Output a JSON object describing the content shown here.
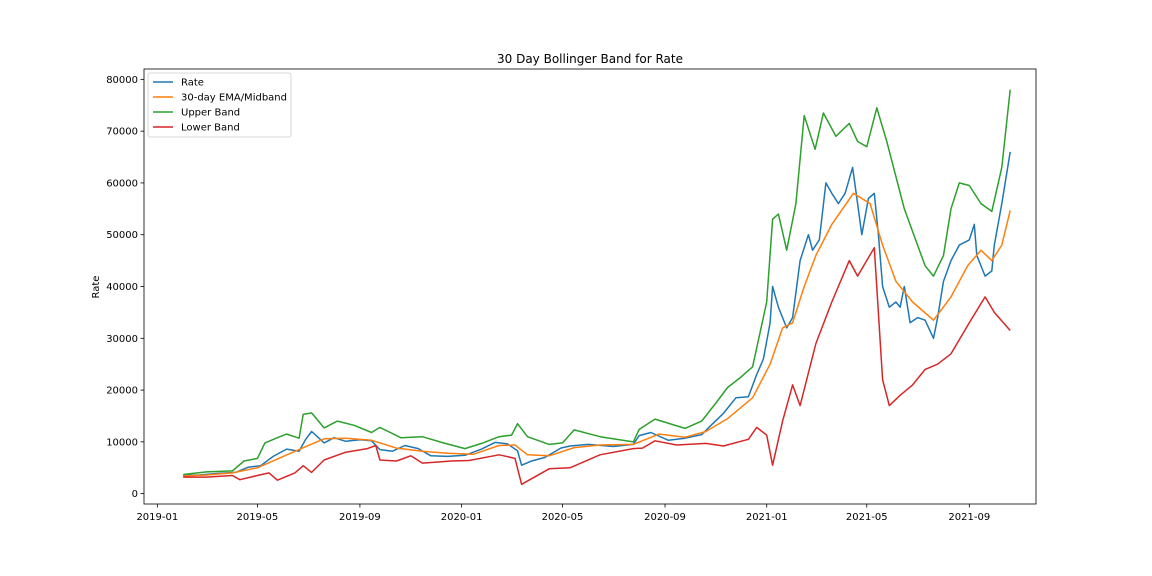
{
  "chart_data": {
    "type": "line",
    "title": "30 Day Bollinger Band for Rate",
    "xlabel": "",
    "ylabel": "Rate",
    "x_ticks": [
      "2019-01",
      "2019-05",
      "2019-09",
      "2020-01",
      "2020-05",
      "2020-09",
      "2021-01",
      "2021-05",
      "2021-09"
    ],
    "y_ticks": [
      "0",
      "10000",
      "20000",
      "30000",
      "40000",
      "50000",
      "60000",
      "70000",
      "80000"
    ],
    "xlim": [
      "2018-12-16",
      "2021-11-20"
    ],
    "ylim": [
      -2000,
      82000
    ],
    "grid": false,
    "legend_position": "top-left",
    "series": [
      {
        "name": "Rate",
        "color": "#1f77b4",
        "points": [
          [
            "2019-02-01",
            3500
          ],
          [
            "2019-02-20",
            3600
          ],
          [
            "2019-03-15",
            3900
          ],
          [
            "2019-04-05",
            4100
          ],
          [
            "2019-04-20",
            5100
          ],
          [
            "2019-05-05",
            5400
          ],
          [
            "2019-05-20",
            7200
          ],
          [
            "2019-06-05",
            8600
          ],
          [
            "2019-06-20",
            8200
          ],
          [
            "2019-06-28",
            10500
          ],
          [
            "2019-07-05",
            12000
          ],
          [
            "2019-07-12",
            11000
          ],
          [
            "2019-07-20",
            9800
          ],
          [
            "2019-08-01",
            10800
          ],
          [
            "2019-08-15",
            10100
          ],
          [
            "2019-09-01",
            10400
          ],
          [
            "2019-09-15",
            10200
          ],
          [
            "2019-09-25",
            8500
          ],
          [
            "2019-10-10",
            8200
          ],
          [
            "2019-10-25",
            9300
          ],
          [
            "2019-11-10",
            8700
          ],
          [
            "2019-11-25",
            7300
          ],
          [
            "2019-12-15",
            7200
          ],
          [
            "2020-01-05",
            7400
          ],
          [
            "2020-01-25",
            8600
          ],
          [
            "2020-02-10",
            9900
          ],
          [
            "2020-02-25",
            9600
          ],
          [
            "2020-03-08",
            8300
          ],
          [
            "2020-03-13",
            5500
          ],
          [
            "2020-03-25",
            6300
          ],
          [
            "2020-04-10",
            7000
          ],
          [
            "2020-04-29",
            8800
          ],
          [
            "2020-05-10",
            9200
          ],
          [
            "2020-06-01",
            9500
          ],
          [
            "2020-07-01",
            9100
          ],
          [
            "2020-07-25",
            9500
          ],
          [
            "2020-08-01",
            11200
          ],
          [
            "2020-08-15",
            11800
          ],
          [
            "2020-09-05",
            10300
          ],
          [
            "2020-09-25",
            10700
          ],
          [
            "2020-10-15",
            11400
          ],
          [
            "2020-10-25",
            13000
          ],
          [
            "2020-11-10",
            15500
          ],
          [
            "2020-11-25",
            18500
          ],
          [
            "2020-12-10",
            18700
          ],
          [
            "2020-12-20",
            23000
          ],
          [
            "2020-12-28",
            26000
          ],
          [
            "2021-01-05",
            33000
          ],
          [
            "2021-01-08",
            40000
          ],
          [
            "2021-01-15",
            36000
          ],
          [
            "2021-01-25",
            32000
          ],
          [
            "2021-02-01",
            34000
          ],
          [
            "2021-02-10",
            45000
          ],
          [
            "2021-02-20",
            50000
          ],
          [
            "2021-02-25",
            47000
          ],
          [
            "2021-03-05",
            49000
          ],
          [
            "2021-03-13",
            60000
          ],
          [
            "2021-03-20",
            58000
          ],
          [
            "2021-03-28",
            56000
          ],
          [
            "2021-04-05",
            58000
          ],
          [
            "2021-04-14",
            63000
          ],
          [
            "2021-04-20",
            56000
          ],
          [
            "2021-04-25",
            50000
          ],
          [
            "2021-05-03",
            57000
          ],
          [
            "2021-05-10",
            58000
          ],
          [
            "2021-05-15",
            50000
          ],
          [
            "2021-05-20",
            40000
          ],
          [
            "2021-05-28",
            36000
          ],
          [
            "2021-06-05",
            37000
          ],
          [
            "2021-06-10",
            36000
          ],
          [
            "2021-06-15",
            40000
          ],
          [
            "2021-06-22",
            33000
          ],
          [
            "2021-07-01",
            34000
          ],
          [
            "2021-07-10",
            33500
          ],
          [
            "2021-07-20",
            30000
          ],
          [
            "2021-07-25",
            34000
          ],
          [
            "2021-08-01",
            41000
          ],
          [
            "2021-08-10",
            45000
          ],
          [
            "2021-08-20",
            48000
          ],
          [
            "2021-09-01",
            49000
          ],
          [
            "2021-09-07",
            52000
          ],
          [
            "2021-09-10",
            46000
          ],
          [
            "2021-09-20",
            42000
          ],
          [
            "2021-09-28",
            43000
          ],
          [
            "2021-10-01",
            48000
          ],
          [
            "2021-10-10",
            56000
          ],
          [
            "2021-10-15",
            61000
          ],
          [
            "2021-10-20",
            66000
          ]
        ]
      },
      {
        "name": "30-day EMA/Midband",
        "color": "#ff7f0e",
        "points": [
          [
            "2019-02-01",
            3400
          ],
          [
            "2019-03-01",
            3600
          ],
          [
            "2019-04-01",
            4000
          ],
          [
            "2019-05-01",
            5000
          ],
          [
            "2019-06-01",
            7200
          ],
          [
            "2019-07-01",
            9300
          ],
          [
            "2019-07-20",
            10600
          ],
          [
            "2019-08-15",
            10700
          ],
          [
            "2019-09-15",
            10300
          ],
          [
            "2019-10-15",
            8800
          ],
          [
            "2019-11-15",
            8200
          ],
          [
            "2019-12-15",
            7800
          ],
          [
            "2020-01-15",
            7600
          ],
          [
            "2020-02-15",
            9300
          ],
          [
            "2020-03-05",
            9400
          ],
          [
            "2020-03-20",
            7500
          ],
          [
            "2020-04-15",
            7300
          ],
          [
            "2020-05-15",
            8900
          ],
          [
            "2020-06-15",
            9400
          ],
          [
            "2020-07-25",
            9500
          ],
          [
            "2020-08-25",
            11500
          ],
          [
            "2020-09-25",
            10900
          ],
          [
            "2020-10-20",
            12000
          ],
          [
            "2020-11-15",
            14500
          ],
          [
            "2020-12-15",
            18500
          ],
          [
            "2021-01-05",
            25000
          ],
          [
            "2021-01-20",
            32000
          ],
          [
            "2021-02-01",
            33000
          ],
          [
            "2021-02-15",
            40000
          ],
          [
            "2021-03-01",
            46000
          ],
          [
            "2021-03-20",
            52000
          ],
          [
            "2021-04-15",
            58000
          ],
          [
            "2021-05-05",
            56000
          ],
          [
            "2021-05-20",
            48000
          ],
          [
            "2021-06-05",
            41000
          ],
          [
            "2021-06-25",
            37000
          ],
          [
            "2021-07-20",
            33500
          ],
          [
            "2021-08-10",
            38000
          ],
          [
            "2021-08-30",
            44000
          ],
          [
            "2021-09-15",
            47000
          ],
          [
            "2021-09-28",
            45000
          ],
          [
            "2021-10-10",
            48000
          ],
          [
            "2021-10-20",
            54700
          ]
        ]
      },
      {
        "name": "Upper Band",
        "color": "#2ca02c",
        "points": [
          [
            "2019-02-01",
            3700
          ],
          [
            "2019-03-01",
            4200
          ],
          [
            "2019-04-01",
            4400
          ],
          [
            "2019-04-15",
            6300
          ],
          [
            "2019-05-01",
            6800
          ],
          [
            "2019-05-10",
            9800
          ],
          [
            "2019-05-25",
            10800
          ],
          [
            "2019-06-05",
            11500
          ],
          [
            "2019-06-20",
            10700
          ],
          [
            "2019-06-25",
            15300
          ],
          [
            "2019-07-05",
            15600
          ],
          [
            "2019-07-20",
            12700
          ],
          [
            "2019-08-05",
            14000
          ],
          [
            "2019-08-25",
            13200
          ],
          [
            "2019-09-15",
            11800
          ],
          [
            "2019-09-25",
            12800
          ],
          [
            "2019-10-20",
            10800
          ],
          [
            "2019-11-15",
            11000
          ],
          [
            "2019-12-10",
            9800
          ],
          [
            "2020-01-05",
            8700
          ],
          [
            "2020-01-25",
            9700
          ],
          [
            "2020-02-15",
            11000
          ],
          [
            "2020-03-01",
            11300
          ],
          [
            "2020-03-08",
            13500
          ],
          [
            "2020-03-20",
            11000
          ],
          [
            "2020-04-15",
            9500
          ],
          [
            "2020-05-01",
            9800
          ],
          [
            "2020-05-15",
            12300
          ],
          [
            "2020-06-15",
            11000
          ],
          [
            "2020-07-25",
            10000
          ],
          [
            "2020-08-01",
            12400
          ],
          [
            "2020-08-20",
            14400
          ],
          [
            "2020-09-25",
            12600
          ],
          [
            "2020-10-15",
            14000
          ],
          [
            "2020-11-01",
            17500
          ],
          [
            "2020-11-15",
            20500
          ],
          [
            "2020-12-01",
            22500
          ],
          [
            "2020-12-15",
            24500
          ],
          [
            "2021-01-01",
            37000
          ],
          [
            "2021-01-08",
            53000
          ],
          [
            "2021-01-15",
            54000
          ],
          [
            "2021-01-25",
            47000
          ],
          [
            "2021-02-05",
            56000
          ],
          [
            "2021-02-15",
            73000
          ],
          [
            "2021-02-28",
            66500
          ],
          [
            "2021-03-10",
            73500
          ],
          [
            "2021-03-25",
            69000
          ],
          [
            "2021-04-10",
            71500
          ],
          [
            "2021-04-20",
            68000
          ],
          [
            "2021-05-01",
            67000
          ],
          [
            "2021-05-13",
            74500
          ],
          [
            "2021-05-25",
            68000
          ],
          [
            "2021-06-15",
            55000
          ],
          [
            "2021-07-10",
            44000
          ],
          [
            "2021-07-20",
            42000
          ],
          [
            "2021-08-01",
            46000
          ],
          [
            "2021-08-10",
            55000
          ],
          [
            "2021-08-20",
            60000
          ],
          [
            "2021-09-01",
            59500
          ],
          [
            "2021-09-15",
            56000
          ],
          [
            "2021-09-28",
            54500
          ],
          [
            "2021-10-10",
            63000
          ],
          [
            "2021-10-20",
            78000
          ]
        ]
      },
      {
        "name": "Lower Band",
        "color": "#d62728",
        "points": [
          [
            "2019-02-01",
            3200
          ],
          [
            "2019-03-01",
            3200
          ],
          [
            "2019-04-01",
            3500
          ],
          [
            "2019-04-10",
            2700
          ],
          [
            "2019-05-01",
            3500
          ],
          [
            "2019-05-15",
            4000
          ],
          [
            "2019-05-25",
            2600
          ],
          [
            "2019-06-15",
            4000
          ],
          [
            "2019-06-25",
            5400
          ],
          [
            "2019-07-05",
            4100
          ],
          [
            "2019-07-20",
            6500
          ],
          [
            "2019-08-15",
            8000
          ],
          [
            "2019-09-10",
            8700
          ],
          [
            "2019-09-20",
            9300
          ],
          [
            "2019-09-25",
            6500
          ],
          [
            "2019-10-15",
            6300
          ],
          [
            "2019-11-01",
            7300
          ],
          [
            "2019-11-15",
            5900
          ],
          [
            "2019-12-20",
            6300
          ],
          [
            "2020-01-10",
            6400
          ],
          [
            "2020-02-15",
            7500
          ],
          [
            "2020-03-05",
            6800
          ],
          [
            "2020-03-13",
            1800
          ],
          [
            "2020-04-15",
            4800
          ],
          [
            "2020-05-10",
            5000
          ],
          [
            "2020-06-15",
            7500
          ],
          [
            "2020-07-25",
            8700
          ],
          [
            "2020-08-05",
            8800
          ],
          [
            "2020-08-20",
            10200
          ],
          [
            "2020-09-15",
            9400
          ],
          [
            "2020-10-20",
            9700
          ],
          [
            "2020-11-10",
            9200
          ],
          [
            "2020-12-10",
            10500
          ],
          [
            "2020-12-20",
            12800
          ],
          [
            "2021-01-01",
            11300
          ],
          [
            "2021-01-08",
            5500
          ],
          [
            "2021-01-20",
            14000
          ],
          [
            "2021-02-01",
            21000
          ],
          [
            "2021-02-10",
            17000
          ],
          [
            "2021-03-01",
            29000
          ],
          [
            "2021-03-20",
            37000
          ],
          [
            "2021-04-10",
            45000
          ],
          [
            "2021-04-20",
            42000
          ],
          [
            "2021-05-10",
            47500
          ],
          [
            "2021-05-20",
            22000
          ],
          [
            "2021-05-28",
            17000
          ],
          [
            "2021-06-10",
            19000
          ],
          [
            "2021-06-25",
            21000
          ],
          [
            "2021-07-10",
            24000
          ],
          [
            "2021-07-25",
            25000
          ],
          [
            "2021-08-10",
            27000
          ],
          [
            "2021-09-01",
            33000
          ],
          [
            "2021-09-20",
            38000
          ],
          [
            "2021-10-01",
            35000
          ],
          [
            "2021-10-20",
            31500
          ]
        ]
      }
    ]
  }
}
